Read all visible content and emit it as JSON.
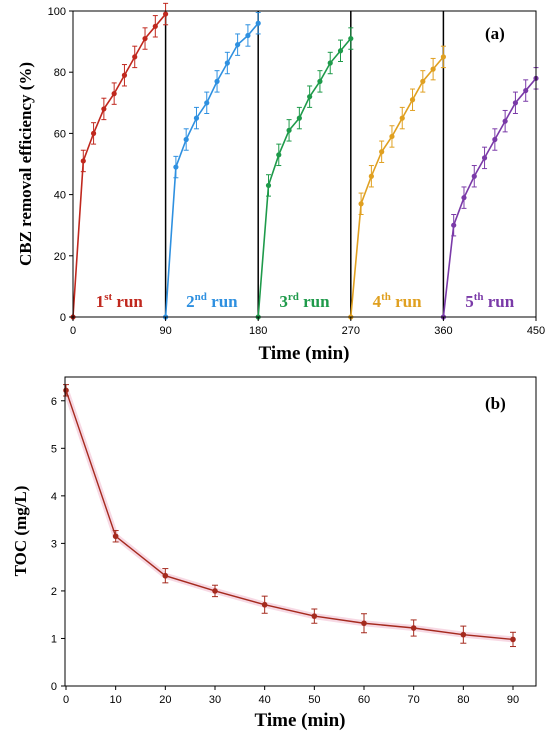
{
  "chart_data": [
    {
      "type": "line",
      "panel_label": "(a)",
      "xlabel": "Time (min)",
      "ylabel": "CBZ removal efficiency (%)",
      "xlim": [
        0,
        450
      ],
      "ylim": [
        0,
        100
      ],
      "xticks": [
        "0",
        "90",
        "180",
        "270",
        "360",
        "450"
      ],
      "yticks": [
        "0",
        "20",
        "40",
        "60",
        "80",
        "100"
      ],
      "run_boundaries": [
        90,
        180,
        270,
        360
      ],
      "grid": false,
      "series": [
        {
          "name": "1st run",
          "label_base": "1",
          "label_sup": "st",
          "label_rest": " run",
          "color": "#C0281E",
          "x": [
            0,
            10,
            20,
            30,
            40,
            50,
            60,
            70,
            80,
            90
          ],
          "y": [
            0,
            51,
            60,
            68,
            73,
            79,
            85,
            91,
            95,
            99
          ]
        },
        {
          "name": "2nd run",
          "label_base": "2",
          "label_sup": "nd",
          "label_rest": " run",
          "color": "#2E90E0",
          "x": [
            90,
            100,
            110,
            120,
            130,
            140,
            150,
            160,
            170,
            180
          ],
          "y": [
            0,
            49,
            58,
            65,
            70,
            77,
            83,
            89,
            92,
            96
          ]
        },
        {
          "name": "3rd run",
          "label_base": "3",
          "label_sup": "rd",
          "label_rest": " run",
          "color": "#1E9A4A",
          "x": [
            180,
            190,
            200,
            210,
            220,
            230,
            240,
            250,
            260,
            270
          ],
          "y": [
            0,
            43,
            53,
            61,
            65,
            72,
            77,
            83,
            87,
            91
          ]
        },
        {
          "name": "4th run",
          "label_base": "4",
          "label_sup": "th",
          "label_rest": " run",
          "color": "#E0A020",
          "x": [
            270,
            280,
            290,
            300,
            310,
            320,
            330,
            340,
            350,
            360
          ],
          "y": [
            0,
            37,
            46,
            54,
            59,
            65,
            71,
            77,
            81,
            85
          ]
        },
        {
          "name": "5th run",
          "label_base": "5",
          "label_sup": "th",
          "label_rest": " run",
          "color": "#7A3AA8",
          "x": [
            360,
            370,
            380,
            390,
            400,
            410,
            420,
            430,
            440,
            450
          ],
          "y": [
            0,
            30,
            39,
            46,
            52,
            58,
            64,
            70,
            74,
            78
          ]
        }
      ]
    },
    {
      "type": "line",
      "panel_label": "(b)",
      "xlabel": "Time (min)",
      "ylabel": "TOC (mg/L)",
      "xlim": [
        0,
        90
      ],
      "ylim": [
        0,
        6.5
      ],
      "xticks": [
        "0",
        "10",
        "20",
        "30",
        "40",
        "50",
        "60",
        "70",
        "80",
        "90"
      ],
      "yticks": [
        "0",
        "1",
        "2",
        "3",
        "4",
        "5",
        "6"
      ],
      "grid": false,
      "series": [
        {
          "color": "#A52A1E",
          "x": [
            0,
            10,
            20,
            30,
            40,
            50,
            60,
            70,
            80,
            90
          ],
          "y": [
            6.22,
            3.15,
            2.32,
            2.0,
            1.71,
            1.47,
            1.32,
            1.22,
            1.08,
            0.98
          ],
          "err": [
            0.12,
            0.12,
            0.15,
            0.12,
            0.18,
            0.15,
            0.2,
            0.17,
            0.18,
            0.15
          ]
        }
      ]
    }
  ]
}
